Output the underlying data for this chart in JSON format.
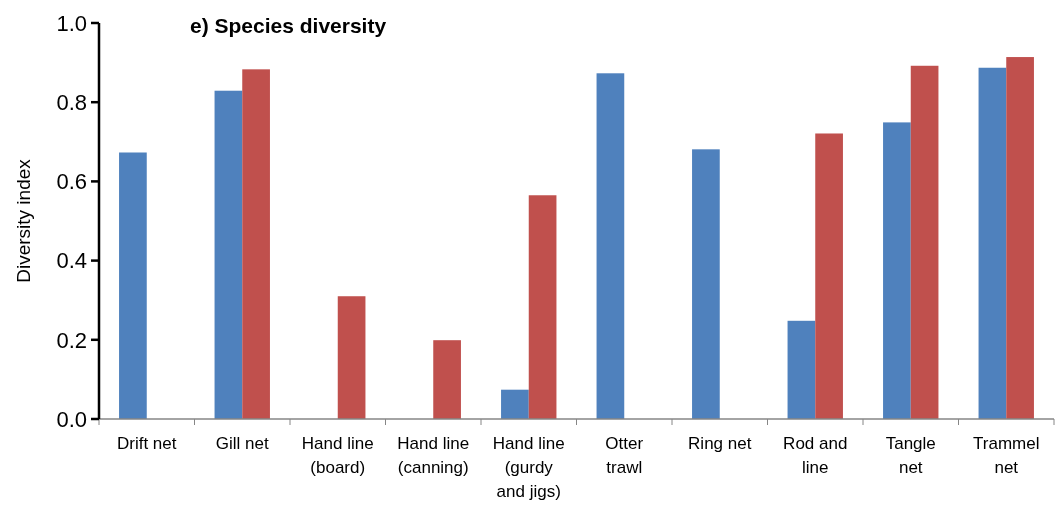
{
  "chart_data": {
    "type": "bar",
    "title": "e) Species diversity",
    "ylabel": "Diversity index",
    "categories": [
      "Drift net",
      "Gill net",
      "Hand line\n(board)",
      "Hand line\n(canning)",
      "Hand line\n(gurdy\nand jigs)",
      "Otter\ntrawl",
      "Ring net",
      "Rod and\nline",
      "Tangle\nnet",
      "Trammel\nnet"
    ],
    "series": [
      {
        "color": "#4f81bd",
        "values": [
          0.673,
          0.829,
          null,
          null,
          0.074,
          0.873,
          0.681,
          0.248,
          0.749,
          0.887
        ]
      },
      {
        "color": "#c0504d",
        "values": [
          null,
          0.883,
          0.31,
          0.199,
          0.565,
          null,
          null,
          0.721,
          0.892,
          0.914
        ]
      }
    ],
    "ylim": [
      0,
      1
    ],
    "yticks": [
      {
        "value": 0,
        "label": "0.0"
      },
      {
        "value": 0.2,
        "label": "0.2"
      },
      {
        "value": 0.4,
        "label": "0.4"
      },
      {
        "value": 0.6,
        "label": "0.6"
      },
      {
        "value": 0.8,
        "label": "0.8"
      },
      {
        "value": 1,
        "label": "1.0"
      }
    ],
    "grid": false
  }
}
